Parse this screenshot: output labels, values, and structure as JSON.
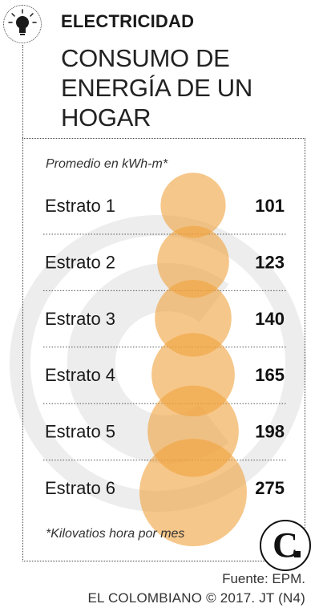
{
  "header": {
    "kicker": "ELECTRICIDAD",
    "headline": "CONSUMO DE ENERGÍA DE UN HOGAR"
  },
  "icons": {
    "header_icon": "lightbulb-icon",
    "logo_icon": "el-colombiano-logo"
  },
  "chart_data": {
    "type": "bubble",
    "subtitle": "Promedio en kWh-m*",
    "categories": [
      "Estrato 1",
      "Estrato 2",
      "Estrato 3",
      "Estrato 4",
      "Estrato 5",
      "Estrato 6"
    ],
    "values": [
      101,
      123,
      140,
      165,
      198,
      275
    ],
    "footnote": "*Kilovatios hora por mes",
    "color": "#f0a23c"
  },
  "footer": {
    "source": "Fuente: EPM.",
    "credit": "EL COLOMBIANO © 2017. JT (N4)"
  }
}
